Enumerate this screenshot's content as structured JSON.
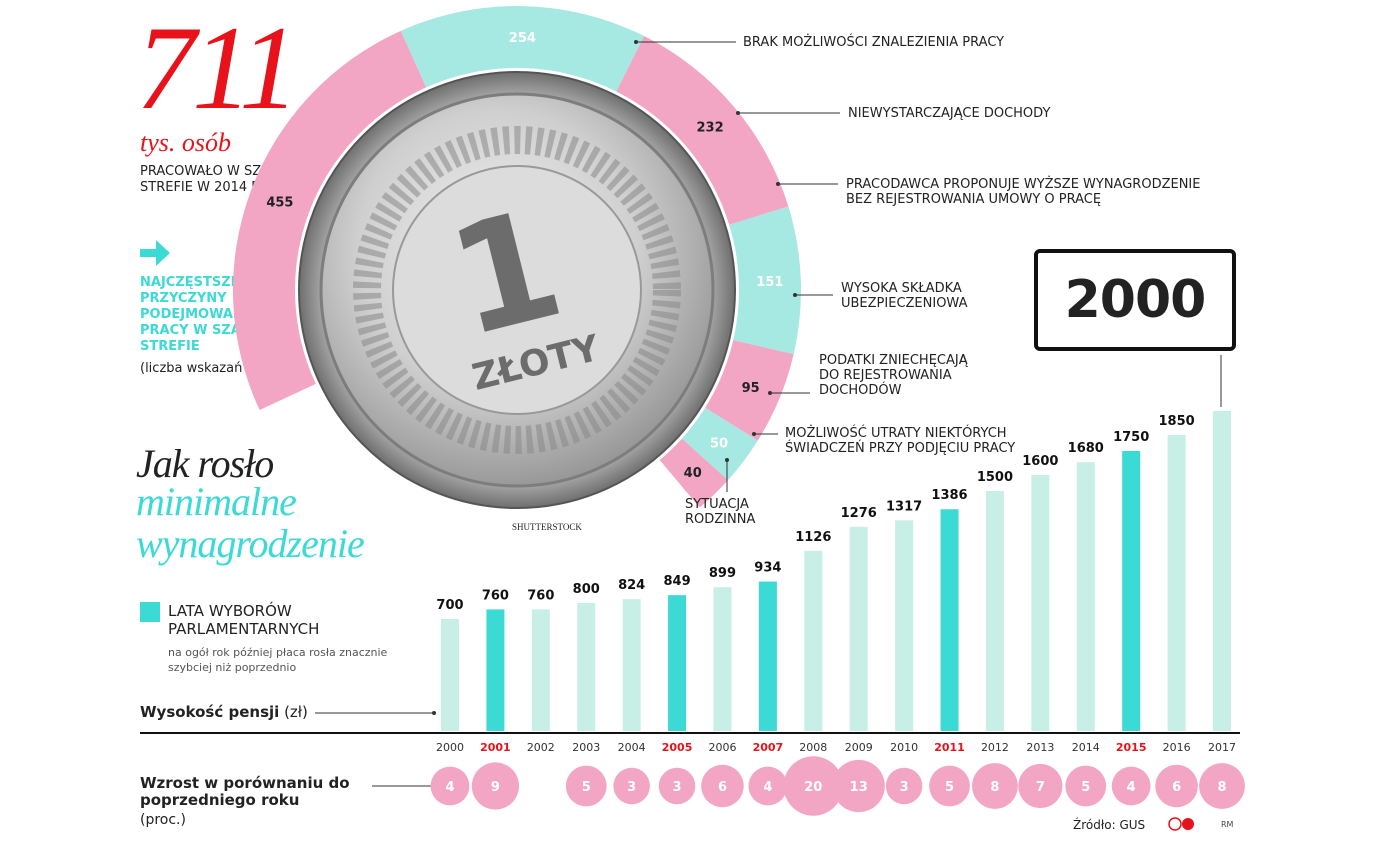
{
  "headline": {
    "number": "711",
    "unit": "tys. osób",
    "description": "PRACOWAŁO W SZAREJ STREFIE W 2014 R.",
    "red": "#e8121a"
  },
  "causes": {
    "title": "NAJCZĘSTSZE PRZYCZYNY PODEJMOWANIA PRACY W SZAREJ STREFIE",
    "note": "(liczba wskazań w tys.)",
    "items": [
      {
        "value": 455,
        "label": "BRAK MOŻLIWOŚCI ZNALEZIENIA PRACY",
        "color": "#f2a6c3"
      },
      {
        "value": 254,
        "label": "NIEWYSTARCZAJĄCE DOCHODY",
        "color": "#a6e8e2"
      },
      {
        "value": 232,
        "label": "PRACODAWCA PROPONUJE WYŻSZE WYNAGRODZENIE BEZ REJESTROWANIA UMOWY O PRACĘ",
        "color": "#f2a6c3"
      },
      {
        "value": 151,
        "label": "WYSOKA SKŁADKA UBEZPIECZENIOWA",
        "color": "#a6e8e2"
      },
      {
        "value": 95,
        "label": "PODATKI ZNIECHĘCAJĄ DO REJESTROWANIA DOCHODÓW",
        "color": "#f2a6c3"
      },
      {
        "value": 50,
        "label": "MOŻLIWOŚĆ UTRATY NIEKTÓRYCH ŚWIADCZEŃ PRZY PODJĘCIU PRACY",
        "color": "#a6e8e2"
      },
      {
        "value": 40,
        "label": "SYTUACJA RODZINNA",
        "color": "#f2a6c3"
      }
    ]
  },
  "coin": {
    "face_value": "1",
    "inscription": "ZŁOTY",
    "photo_credit": "SHUTTERSTOCK"
  },
  "wage_section": {
    "title_line1": "Jak rosło",
    "title_line2": "minimalne",
    "title_line3": "wynagrodzenie",
    "legend_label": "LATA WYBORÓW PARLAMENTARNYCH",
    "legend_note": "na ogół rok później płaca rosła znacznie szybciej niż poprzednio",
    "axis_label_bold": "Wysokość pensji",
    "axis_label_unit": "(zł)",
    "growth_label": "Wzrost w porównaniu do poprzedniego roku",
    "growth_unit": "(proc.)",
    "highlight_value": "2000",
    "source": "Źródło: GUS",
    "credit": "RM"
  },
  "colors": {
    "accent_cyan": "#3cdad5",
    "bar_light": "#c8efe6",
    "bar_election": "#3cdad5",
    "bubble_pink": "#f2a6c3",
    "year_red": "#e8121a"
  },
  "chart_data": {
    "type": "bar",
    "categories": [
      "2000",
      "2001",
      "2002",
      "2003",
      "2004",
      "2005",
      "2006",
      "2007",
      "2008",
      "2009",
      "2010",
      "2011",
      "2012",
      "2013",
      "2014",
      "2015",
      "2016",
      "2017"
    ],
    "values": [
      700,
      760,
      760,
      800,
      824,
      849,
      899,
      934,
      1126,
      1276,
      1317,
      1386,
      1500,
      1600,
      1680,
      1750,
      1850,
      2000
    ],
    "value_labels": [
      "700",
      "760",
      "760",
      "800",
      "824",
      "849",
      "899",
      "934",
      "1126",
      "1276",
      "1317",
      "1386",
      "1500",
      "1600",
      "1680",
      "1750",
      "1850",
      ""
    ],
    "election_years": [
      false,
      true,
      false,
      false,
      false,
      true,
      false,
      true,
      false,
      false,
      false,
      true,
      false,
      false,
      false,
      true,
      false,
      false
    ],
    "growth_pct": [
      4,
      9,
      null,
      5,
      3,
      3,
      6,
      4,
      20,
      13,
      3,
      5,
      8,
      7,
      5,
      4,
      6,
      8
    ],
    "ylim": [
      0,
      2000
    ],
    "ylabel": "Wysokość pensji (zł)"
  }
}
